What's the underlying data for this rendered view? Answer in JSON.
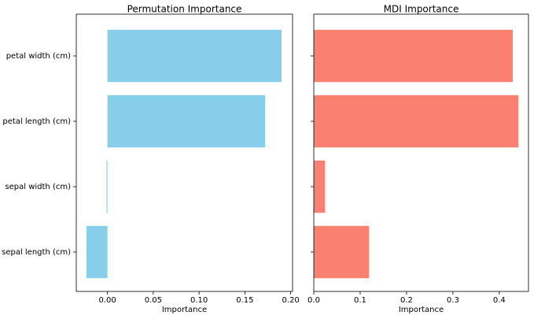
{
  "chart_data": [
    {
      "type": "barh",
      "title": "Permutation Importance",
      "xlabel": "Importance",
      "categories": [
        "petal width (cm)",
        "petal length (cm)",
        "sepal width (cm)",
        "sepal length (cm)"
      ],
      "values": [
        0.19,
        0.172,
        -0.001,
        -0.023
      ],
      "color": "#87ceeb",
      "xlim": [
        -0.034,
        0.202
      ],
      "xticks": [
        {
          "value": 0,
          "label": "0.00"
        },
        {
          "value": 0.05,
          "label": "0.05"
        },
        {
          "value": 0.1,
          "label": "0.10"
        },
        {
          "value": 0.15,
          "label": "0.15"
        },
        {
          "value": 0.2,
          "label": "0.20"
        }
      ]
    },
    {
      "type": "barh",
      "title": "MDI Importance",
      "xlabel": "Importance",
      "values": [
        0.429,
        0.441,
        0.024,
        0.119
      ],
      "color": "#fa8072",
      "xlim": [
        0,
        0.463
      ],
      "xticks": [
        {
          "value": 0,
          "label": "0.0"
        },
        {
          "value": 0.1,
          "label": "0.1"
        },
        {
          "value": 0.2,
          "label": "0.2"
        },
        {
          "value": 0.3,
          "label": "0.3"
        },
        {
          "value": 0.4,
          "label": "0.4"
        }
      ]
    }
  ]
}
